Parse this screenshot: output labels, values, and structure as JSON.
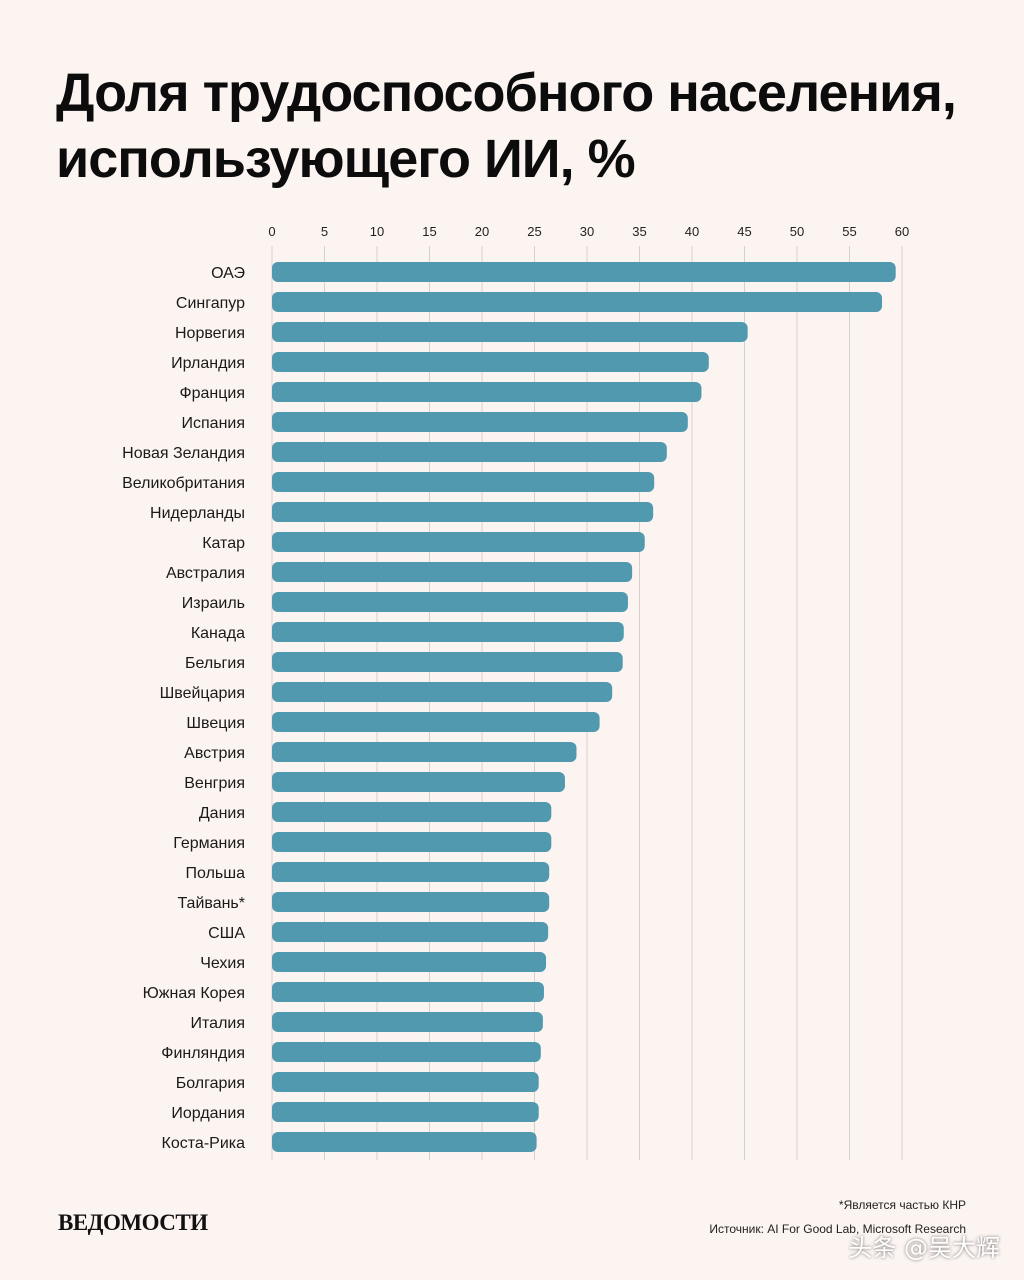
{
  "header": {
    "title": "Доля трудоспособного населения, использующего ИИ, %"
  },
  "chart_data": {
    "type": "bar",
    "orientation": "horizontal",
    "title": "Доля трудоспособного населения, использующего ИИ, %",
    "xlim": [
      0,
      60
    ],
    "ticks": [
      0,
      5,
      10,
      15,
      20,
      25,
      30,
      35,
      40,
      45,
      50,
      55,
      60
    ],
    "categories": [
      "ОАЭ",
      "Сингапур",
      "Норвегия",
      "Ирландия",
      "Франция",
      "Испания",
      "Новая Зеландия",
      "Великобритания",
      "Нидерланды",
      "Катар",
      "Австралия",
      "Израиль",
      "Канада",
      "Бельгия",
      "Швейцария",
      "Швеция",
      "Австрия",
      "Венгрия",
      "Дания",
      "Германия",
      "Польша",
      "Тайвань*",
      "США",
      "Чехия",
      "Южная Корея",
      "Италия",
      "Финляндия",
      "Болгария",
      "Иордания",
      "Коста-Рика"
    ],
    "values": [
      59.4,
      58.1,
      45.3,
      41.6,
      40.9,
      39.6,
      37.6,
      36.4,
      36.3,
      35.5,
      34.3,
      33.9,
      33.5,
      33.4,
      32.4,
      31.2,
      29.0,
      27.9,
      26.6,
      26.6,
      26.4,
      26.4,
      26.3,
      26.1,
      25.9,
      25.8,
      25.6,
      25.4,
      25.4,
      25.2
    ],
    "bar_color": "#5099ae",
    "grid": true
  },
  "footer": {
    "logo": "ВЕДОМОСТИ",
    "footnote": "*Является частью КНР",
    "source": "Источник: AI For Good Lab, Microsoft Research",
    "watermark": "头条 @吴大辉"
  }
}
